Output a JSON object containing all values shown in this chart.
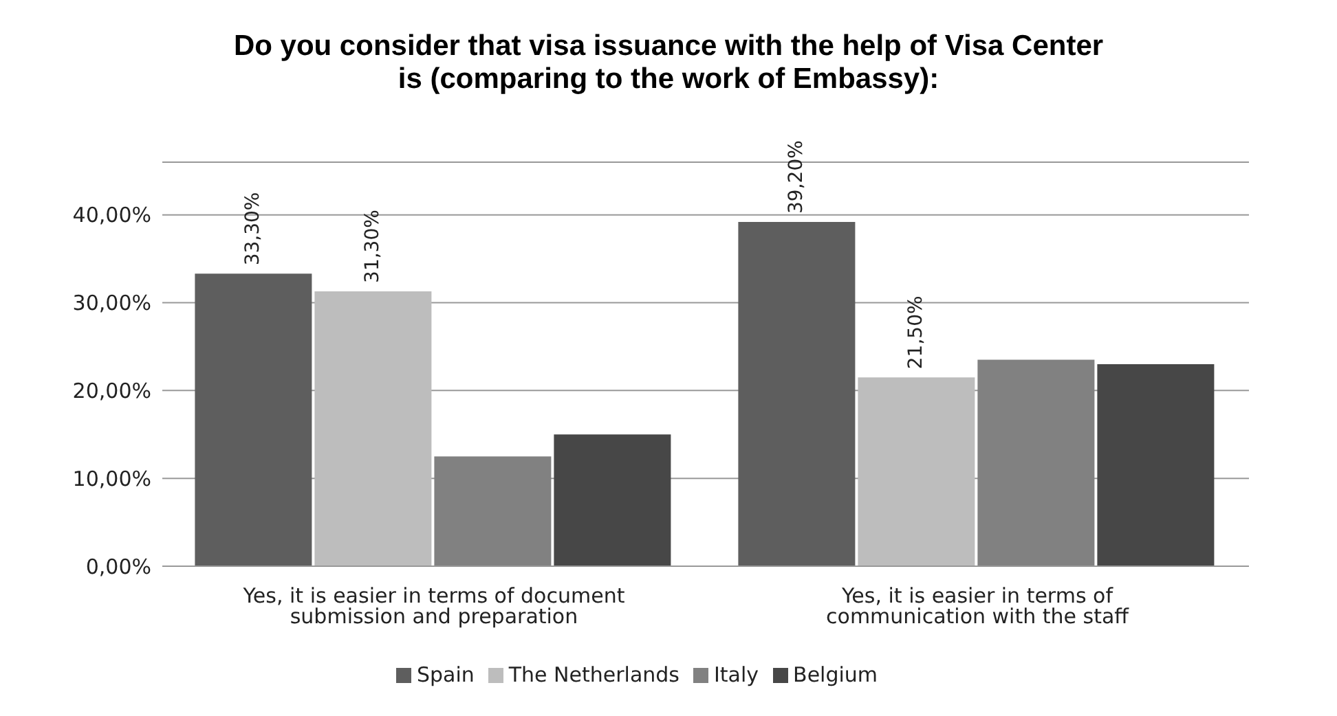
{
  "chart_data": {
    "type": "bar",
    "title": "Do you consider that visa issuance with the help of Visa Center is (comparing to the work of Embassy):",
    "categories": [
      "Yes, it is easier in terms of document submission and preparation",
      "Yes, it is easier in terms of communication with the staff"
    ],
    "series": [
      {
        "name": "Spain",
        "color": "#5e5e5e",
        "values": [
          33.3,
          39.2
        ],
        "value_labels": [
          "33,30%",
          "39,20%"
        ]
      },
      {
        "name": "The Netherlands",
        "color": "#bdbdbd",
        "values": [
          31.3,
          21.5
        ],
        "value_labels": [
          "31,30%",
          "21,50%"
        ]
      },
      {
        "name": "Italy",
        "color": "#818181",
        "values": [
          12.5,
          23.5
        ],
        "value_labels": [
          null,
          null
        ]
      },
      {
        "name": "Belgium",
        "color": "#474747",
        "values": [
          15,
          23
        ],
        "value_labels": [
          null,
          null
        ]
      }
    ],
    "ylim": [
      0,
      46
    ],
    "yticks": [
      {
        "value": 0,
        "label": "0,00%"
      },
      {
        "value": 10,
        "label": "10,00%"
      },
      {
        "value": 20,
        "label": "20,00%"
      },
      {
        "value": 30,
        "label": "30,00%"
      },
      {
        "value": 40,
        "label": "40,00%"
      }
    ],
    "grid": "y",
    "legend": "bottom"
  }
}
